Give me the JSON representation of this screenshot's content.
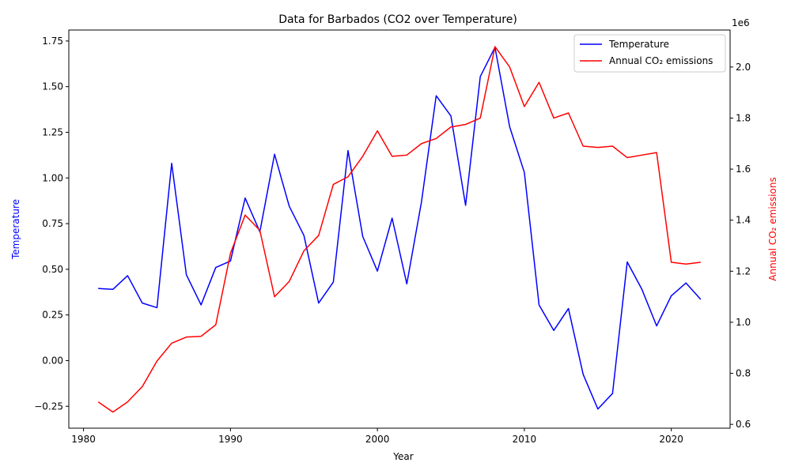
{
  "chart_data": {
    "type": "line",
    "title": "Data for Barbados (CO2 over Temperature)",
    "xlabel": "Year",
    "ylabel_left": "Temperature",
    "ylabel_right": "Annual CO₂ emissions",
    "right_offset_text": "1e6",
    "xlim": [
      1979.0,
      2024.0
    ],
    "ylim_left": [
      -0.37,
      1.81
    ],
    "ylim_right": [
      0.585,
      2.145
    ],
    "x_ticks": [
      1980,
      1990,
      2000,
      2010,
      2020
    ],
    "left_ticks": [
      -0.25,
      0.0,
      0.25,
      0.5,
      0.75,
      1.0,
      1.25,
      1.5,
      1.75
    ],
    "left_tick_labels": [
      "−0.25",
      "0.00",
      "0.25",
      "0.50",
      "0.75",
      "1.00",
      "1.25",
      "1.50",
      "1.75"
    ],
    "right_ticks": [
      0.6,
      0.8,
      1.0,
      1.2,
      1.4,
      1.6,
      1.8,
      2.0
    ],
    "right_tick_labels": [
      "0.6",
      "0.8",
      "1.0",
      "1.2",
      "1.4",
      "1.6",
      "1.8",
      "2.0"
    ],
    "legend_position": "top-right",
    "x": [
      1981,
      1982,
      1983,
      1984,
      1985,
      1986,
      1987,
      1988,
      1989,
      1990,
      1991,
      1992,
      1993,
      1994,
      1995,
      1996,
      1997,
      1998,
      1999,
      2000,
      2001,
      2002,
      2003,
      2004,
      2005,
      2006,
      2007,
      2008,
      2009,
      2010,
      2011,
      2012,
      2013,
      2014,
      2015,
      2016,
      2017,
      2018,
      2019,
      2020,
      2021,
      2022
    ],
    "series": [
      {
        "name": "Temperature",
        "axis": "left",
        "color": "#0000ff",
        "values": [
          0.395,
          0.39,
          0.465,
          0.315,
          0.29,
          1.08,
          0.47,
          0.305,
          0.51,
          0.545,
          0.89,
          0.705,
          1.13,
          0.845,
          0.685,
          0.315,
          0.43,
          1.15,
          0.68,
          0.49,
          0.78,
          0.42,
          0.87,
          1.45,
          1.34,
          0.85,
          1.555,
          1.715,
          1.28,
          1.03,
          0.305,
          0.165,
          0.285,
          -0.075,
          -0.265,
          -0.18,
          0.54,
          0.39,
          0.19,
          0.355,
          0.425,
          0.335
        ]
      },
      {
        "name": "Annual CO₂ emissions",
        "axis": "right",
        "color": "#ff0000",
        "values": [
          0.688,
          0.648,
          0.688,
          0.748,
          0.848,
          0.918,
          0.942,
          0.945,
          0.99,
          1.27,
          1.42,
          1.36,
          1.1,
          1.16,
          1.28,
          1.34,
          1.54,
          1.57,
          1.65,
          1.75,
          1.65,
          1.655,
          1.7,
          1.72,
          1.765,
          1.775,
          1.8,
          2.08,
          2.0,
          1.845,
          1.94,
          1.8,
          1.82,
          1.69,
          1.685,
          1.69,
          1.645,
          1.655,
          1.665,
          1.235,
          1.228,
          1.235
        ]
      }
    ]
  }
}
